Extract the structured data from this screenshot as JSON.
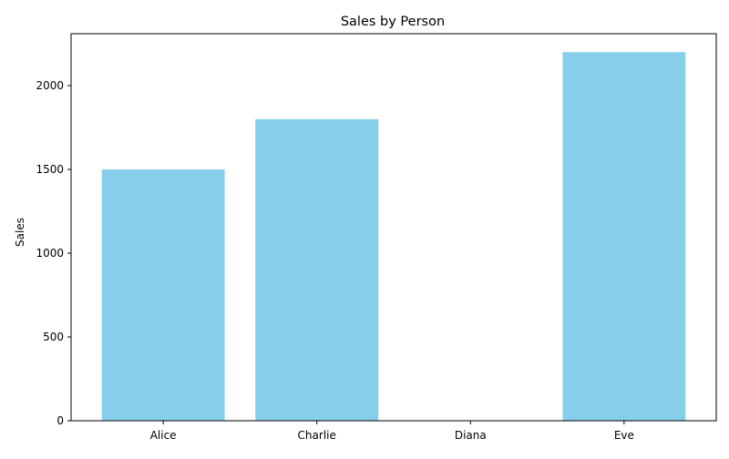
{
  "chart_data": {
    "type": "bar",
    "title": "Sales by Person",
    "xlabel": "",
    "ylabel": "Sales",
    "categories": [
      "Alice",
      "Charlie",
      "Diana",
      "Eve"
    ],
    "values": [
      1500,
      1800,
      0,
      2200
    ],
    "ylim": [
      0,
      2310
    ],
    "yticks": [
      0,
      500,
      1000,
      1500,
      2000
    ],
    "grid": false,
    "bar_color": "#87ceeb"
  }
}
